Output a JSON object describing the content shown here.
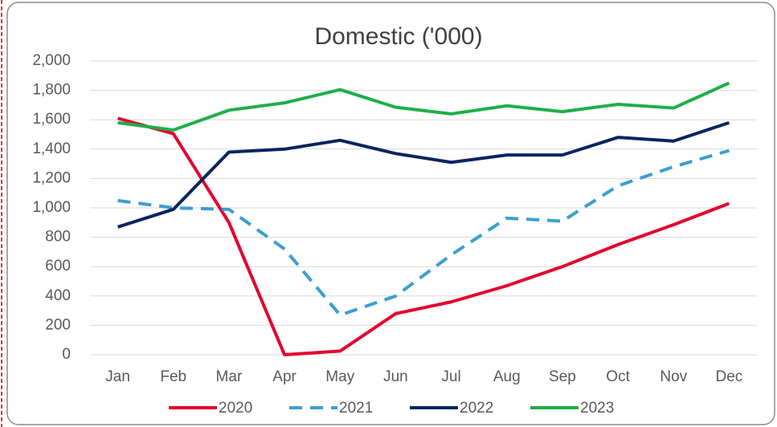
{
  "chart_data": {
    "type": "line",
    "title": "Domestic ('000)",
    "categories": [
      "Jan",
      "Feb",
      "Mar",
      "Apr",
      "May",
      "Jun",
      "Jul",
      "Aug",
      "Sep",
      "Oct",
      "Nov",
      "Dec"
    ],
    "series": [
      {
        "name": "2020",
        "color": "#e4032e",
        "dashed": false,
        "values": [
          1610,
          1505,
          900,
          0,
          25,
          280,
          360,
          470,
          600,
          750,
          885,
          1030
        ]
      },
      {
        "name": "2021",
        "color": "#3aa0d0",
        "dashed": true,
        "values": [
          1050,
          1000,
          990,
          720,
          270,
          400,
          680,
          930,
          910,
          1150,
          1280,
          1390
        ]
      },
      {
        "name": "2022",
        "color": "#0b2460",
        "dashed": false,
        "values": [
          870,
          990,
          1380,
          1400,
          1460,
          1370,
          1310,
          1360,
          1360,
          1480,
          1455,
          1580
        ]
      },
      {
        "name": "2023",
        "color": "#1fae4a",
        "dashed": false,
        "values": [
          1580,
          1530,
          1665,
          1715,
          1805,
          1685,
          1640,
          1695,
          1655,
          1705,
          1680,
          1850
        ]
      }
    ],
    "ylim": [
      0,
      2000
    ],
    "yticks": [
      0,
      200,
      400,
      600,
      800,
      {
        "value": 1000,
        "label": "1,000"
      },
      {
        "value": 1200,
        "label": "1,200"
      },
      {
        "value": 1400,
        "label": "1,400"
      },
      {
        "value": 1600,
        "label": "1,600"
      },
      {
        "value": 1800,
        "label": "1,800"
      },
      {
        "value": 2000,
        "label": "2,000"
      }
    ],
    "grid": true,
    "legend": "bottom"
  }
}
